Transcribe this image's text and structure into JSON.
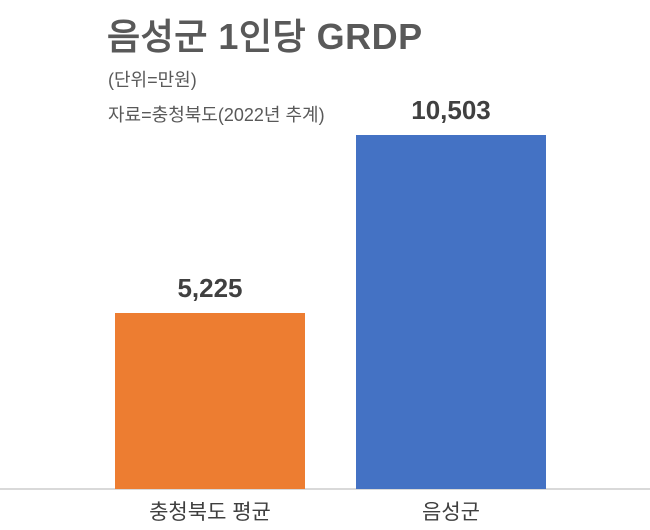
{
  "chart_data": {
    "type": "bar",
    "title": "음성군 1인당 GRDP",
    "unit_note": "(단위=만원)",
    "source_note": "자료=충청북도(2022년 추계)",
    "categories": [
      "충청북도 평균",
      "음성군"
    ],
    "values": [
      5225,
      10503
    ],
    "value_labels": [
      "5,225",
      "10,503"
    ],
    "series_colors": [
      "#ED7D31",
      "#4472C4"
    ],
    "xlabel": "",
    "ylabel": "",
    "ylim": [
      0,
      10503
    ],
    "grid": false,
    "legend": "none",
    "axis_line_color": "#D9D9D9",
    "title_color": "#595959",
    "label_color": "#404040"
  }
}
